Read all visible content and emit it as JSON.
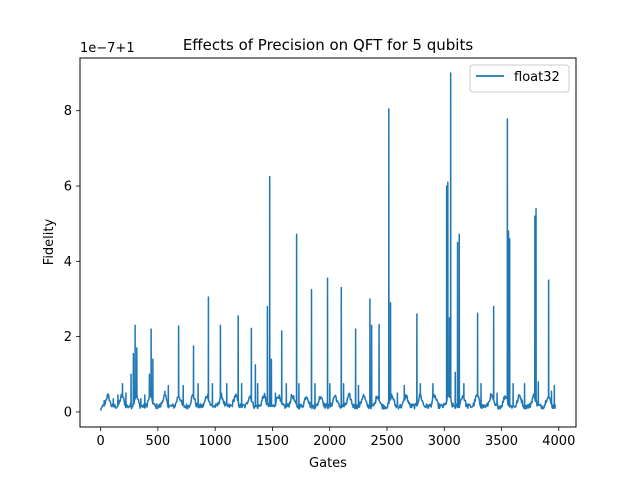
{
  "chart_data": {
    "type": "line",
    "title": "Effects of Precision on QFT for 5 qubits",
    "xlabel": "Gates",
    "ylabel": "Fidelity",
    "y_offset_label": "1e−7+1",
    "xlim": [
      -180,
      4150
    ],
    "ylim": [
      -0.4,
      9.4
    ],
    "xticks": [
      0,
      500,
      1000,
      1500,
      2000,
      2500,
      3000,
      3500,
      4000
    ],
    "xtick_labels": [
      "0",
      "500",
      "1000",
      "1500",
      "2000",
      "2500",
      "3000",
      "3500",
      "4000"
    ],
    "yticks": [
      0,
      2,
      4,
      6,
      8
    ],
    "ytick_labels": [
      "0",
      "2",
      "4",
      "6",
      "8"
    ],
    "legend_position": "upper right",
    "grid": false,
    "x_start": 0,
    "x_end": 3970,
    "baseline_period": 124,
    "baseline_amplitude": 0.28,
    "series": [
      {
        "name": "float32",
        "color": "#1f77b4",
        "spikes": [
          {
            "x": 30,
            "y": 0.3
          },
          {
            "x": 60,
            "y": 0.4
          },
          {
            "x": 110,
            "y": 0.35
          },
          {
            "x": 150,
            "y": 0.45
          },
          {
            "x": 190,
            "y": 0.75
          },
          {
            "x": 220,
            "y": 0.5
          },
          {
            "x": 265,
            "y": 1.0
          },
          {
            "x": 285,
            "y": 1.55
          },
          {
            "x": 300,
            "y": 2.3
          },
          {
            "x": 315,
            "y": 1.7
          },
          {
            "x": 350,
            "y": 0.35
          },
          {
            "x": 385,
            "y": 0.45
          },
          {
            "x": 425,
            "y": 1.0
          },
          {
            "x": 440,
            "y": 2.2
          },
          {
            "x": 455,
            "y": 1.4
          },
          {
            "x": 560,
            "y": 0.55
          },
          {
            "x": 590,
            "y": 0.7
          },
          {
            "x": 680,
            "y": 2.28
          },
          {
            "x": 720,
            "y": 0.7
          },
          {
            "x": 810,
            "y": 1.75
          },
          {
            "x": 850,
            "y": 0.75
          },
          {
            "x": 940,
            "y": 3.05
          },
          {
            "x": 975,
            "y": 0.75
          },
          {
            "x": 1045,
            "y": 2.3
          },
          {
            "x": 1100,
            "y": 0.75
          },
          {
            "x": 1200,
            "y": 2.55
          },
          {
            "x": 1230,
            "y": 0.75
          },
          {
            "x": 1315,
            "y": 2.22
          },
          {
            "x": 1350,
            "y": 1.25
          },
          {
            "x": 1370,
            "y": 0.75
          },
          {
            "x": 1455,
            "y": 2.8
          },
          {
            "x": 1475,
            "y": 6.25
          },
          {
            "x": 1490,
            "y": 1.4
          },
          {
            "x": 1525,
            "y": 0.5
          },
          {
            "x": 1580,
            "y": 2.15
          },
          {
            "x": 1620,
            "y": 0.75
          },
          {
            "x": 1710,
            "y": 4.72
          },
          {
            "x": 1730,
            "y": 0.75
          },
          {
            "x": 1840,
            "y": 3.25
          },
          {
            "x": 1870,
            "y": 0.75
          },
          {
            "x": 1980,
            "y": 3.55
          },
          {
            "x": 2000,
            "y": 0.75
          },
          {
            "x": 2100,
            "y": 3.3
          },
          {
            "x": 2120,
            "y": 0.75
          },
          {
            "x": 2225,
            "y": 2.2
          },
          {
            "x": 2250,
            "y": 0.7
          },
          {
            "x": 2350,
            "y": 3.0
          },
          {
            "x": 2365,
            "y": 2.3
          },
          {
            "x": 2430,
            "y": 2.32
          },
          {
            "x": 2515,
            "y": 8.05
          },
          {
            "x": 2530,
            "y": 2.9
          },
          {
            "x": 2590,
            "y": 0.5
          },
          {
            "x": 2650,
            "y": 0.7
          },
          {
            "x": 2760,
            "y": 2.6
          },
          {
            "x": 2790,
            "y": 0.75
          },
          {
            "x": 2900,
            "y": 0.75
          },
          {
            "x": 3020,
            "y": 6.0
          },
          {
            "x": 3030,
            "y": 6.1
          },
          {
            "x": 3045,
            "y": 2.5
          },
          {
            "x": 3055,
            "y": 9.0
          },
          {
            "x": 3095,
            "y": 1.05
          },
          {
            "x": 3115,
            "y": 4.5
          },
          {
            "x": 3130,
            "y": 4.72
          },
          {
            "x": 3170,
            "y": 0.75
          },
          {
            "x": 3290,
            "y": 2.62
          },
          {
            "x": 3320,
            "y": 0.75
          },
          {
            "x": 3430,
            "y": 2.8
          },
          {
            "x": 3460,
            "y": 0.5
          },
          {
            "x": 3550,
            "y": 7.78
          },
          {
            "x": 3560,
            "y": 4.8
          },
          {
            "x": 3570,
            "y": 4.6
          },
          {
            "x": 3600,
            "y": 0.75
          },
          {
            "x": 3700,
            "y": 0.75
          },
          {
            "x": 3790,
            "y": 5.2
          },
          {
            "x": 3800,
            "y": 5.4
          },
          {
            "x": 3820,
            "y": 0.8
          },
          {
            "x": 3910,
            "y": 3.5
          },
          {
            "x": 3935,
            "y": 0.55
          },
          {
            "x": 3960,
            "y": 0.7
          }
        ]
      }
    ]
  }
}
